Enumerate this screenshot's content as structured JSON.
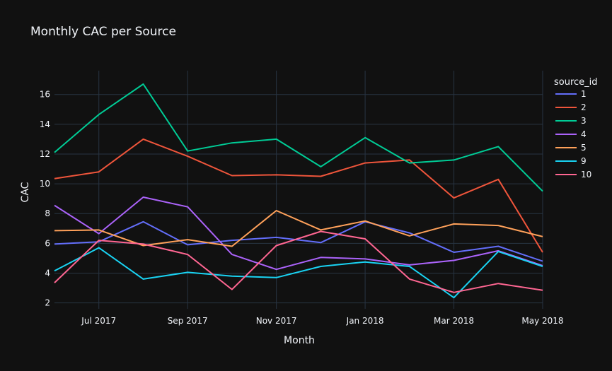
{
  "chart_data": {
    "type": "line",
    "title": "Monthly CAC per Source",
    "xlabel": "Month",
    "ylabel": "CAC",
    "x": [
      "2017-06",
      "2017-07",
      "2017-08",
      "2017-09",
      "2017-10",
      "2017-11",
      "2017-12",
      "2018-01",
      "2018-02",
      "2018-03",
      "2018-04",
      "2018-05"
    ],
    "x_tick_labels": [
      {
        "month": "2017-07",
        "label": "Jul 2017"
      },
      {
        "month": "2017-09",
        "label": "Sep 2017"
      },
      {
        "month": "2017-11",
        "label": "Nov 2017"
      },
      {
        "month": "2018-01",
        "label": "Jan 2018"
      },
      {
        "month": "2018-03",
        "label": "Mar 2018"
      },
      {
        "month": "2018-05",
        "label": "May 2018"
      }
    ],
    "ylim": [
      1.6,
      17.6
    ],
    "y_ticks": [
      2,
      4,
      6,
      8,
      10,
      12,
      14,
      16
    ],
    "grid": true,
    "legend_title": "source_id",
    "legend_position": "right",
    "series": [
      {
        "name": "1",
        "color": "#636efa",
        "values": [
          5.95,
          6.1,
          7.45,
          5.9,
          6.2,
          6.4,
          6.05,
          7.45,
          6.7,
          5.4,
          5.8,
          4.8
        ]
      },
      {
        "name": "2",
        "color": "#ef553b",
        "values": [
          10.35,
          10.8,
          13.0,
          11.85,
          10.55,
          10.6,
          10.5,
          11.4,
          11.6,
          9.05,
          10.3,
          5.4
        ]
      },
      {
        "name": "3",
        "color": "#00cc96",
        "values": [
          12.1,
          14.65,
          16.7,
          12.2,
          12.75,
          13.0,
          11.15,
          13.1,
          11.4,
          11.6,
          12.5,
          9.5
        ]
      },
      {
        "name": "4",
        "color": "#ab63fa",
        "values": [
          8.55,
          6.65,
          9.1,
          8.45,
          5.25,
          4.25,
          5.05,
          4.95,
          4.55,
          4.85,
          5.5,
          4.5
        ]
      },
      {
        "name": "5",
        "color": "#ffa15a",
        "values": [
          6.85,
          6.9,
          5.85,
          6.25,
          5.8,
          8.2,
          6.9,
          7.5,
          6.5,
          7.3,
          7.2,
          6.45
        ]
      },
      {
        "name": "9",
        "color": "#19d3f3",
        "values": [
          4.15,
          5.7,
          3.6,
          4.05,
          3.8,
          3.7,
          4.45,
          4.75,
          4.45,
          2.35,
          5.45,
          4.45
        ]
      },
      {
        "name": "10",
        "color": "#ff6692",
        "values": [
          3.35,
          6.2,
          5.95,
          5.25,
          2.9,
          5.85,
          6.8,
          6.3,
          3.6,
          2.7,
          3.3,
          2.85
        ]
      }
    ]
  }
}
